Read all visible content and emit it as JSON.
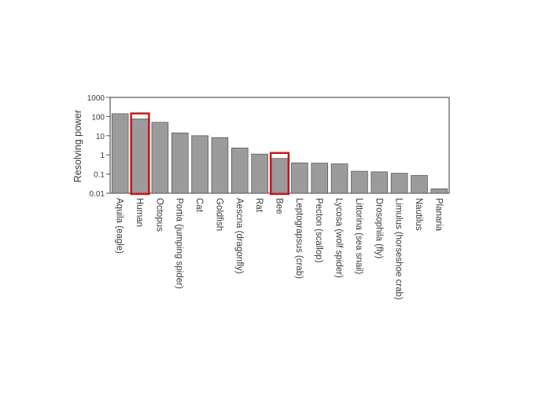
{
  "chart_data": {
    "type": "bar",
    "ylabel": "Resolving power",
    "xlabel": "",
    "title": "",
    "yscale": "log",
    "ylim": [
      0.01,
      1000
    ],
    "yticks": [
      "0.01",
      "0.1",
      "1",
      "10",
      "100",
      "1000"
    ],
    "categories": [
      "Aquila (eagle)",
      "Human",
      "Octopus",
      "Portia (jumping spider)",
      "Cat",
      "Goldfish",
      "Aescna (dragonfly)",
      "Rat",
      "Bee",
      "Leptograpsus (crab)",
      "Pecton (scallop)",
      "Lycosa (wolf spider)",
      "Littorina (sea snail)",
      "Drosophila (fly)",
      "Limulus (horseshoe crab)",
      "Nautilus",
      "Planaria"
    ],
    "values": [
      140,
      75,
      50,
      14,
      10,
      8,
      2.3,
      1.1,
      0.65,
      0.38,
      0.37,
      0.34,
      0.14,
      0.13,
      0.11,
      0.085,
      0.017
    ],
    "highlighted": [
      "Human",
      "Bee"
    ],
    "grid": false,
    "colors": {
      "bar": "#9b9b9b",
      "bar_edge": "#5a5a5a",
      "highlight": "#c8161d",
      "axis": "#555555"
    }
  }
}
